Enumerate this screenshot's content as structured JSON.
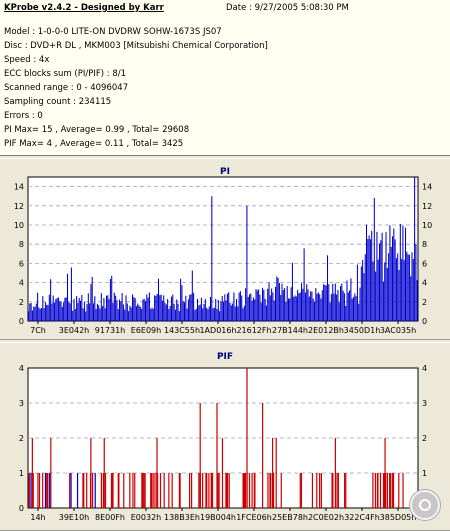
{
  "header": {
    "title": "KProbe v2.4.2 - Designed by Karr",
    "date": "Date : 9/27/2005 5:08:30 PM"
  },
  "info_lines": [
    "Model : 1-0-0-0 LITE-ON DVDRW SOHW-1673S JS07",
    "Disc : DVD+R DL , MKM003 [Mitsubishi Chemical Corporation]",
    "Speed : 4x",
    "ECC blocks sum (PI/PIF) : 8/1",
    "Scanned range : 0 - 4096047",
    "Sampling count : 234115",
    "Errors : 0",
    "PI Max= 15 , Average= 0.99 , Total= 29608",
    "PIF Max= 4 , Average= 0.11 , Total= 3425"
  ],
  "chart_data": [
    {
      "type": "bar",
      "title": "PI",
      "ylim": [
        0,
        15
      ],
      "yticks": [
        "0",
        "2",
        "4",
        "6",
        "8",
        "10",
        "12",
        "14"
      ],
      "xticks": [
        "7Ch",
        "3E042h",
        "91731h",
        "E6E09h",
        "143C55h",
        "1AD016h",
        "21612Fh",
        "27B144h",
        "2E012Bh",
        "3450D1h",
        "3AC035h"
      ],
      "grid": true,
      "bar_color": "#0000cc",
      "approx_bins": 300,
      "baseline_range": [
        1,
        3
      ],
      "peaks": [
        {
          "position_fraction": 0.47,
          "value": 13
        },
        {
          "position_fraction": 0.56,
          "value": 12
        },
        {
          "position_fraction": 0.99,
          "value": 15
        }
      ]
    },
    {
      "type": "bar",
      "title": "PIF",
      "ylim": [
        0,
        4
      ],
      "yticks": [
        "0",
        "1",
        "2",
        "3",
        "4"
      ],
      "xticks": [
        "14h",
        "39E10h",
        "8E00Fh",
        "E0032h",
        "138B3Eh",
        "19B004h",
        "1FCE06h",
        "25EB78h",
        "2C0E02h",
        "322C4Fh",
        "385D05h"
      ],
      "grid": true,
      "bar_color": "#cc0000",
      "second_color": "#0000cc",
      "values_present": [
        1,
        2,
        3,
        4
      ]
    }
  ]
}
